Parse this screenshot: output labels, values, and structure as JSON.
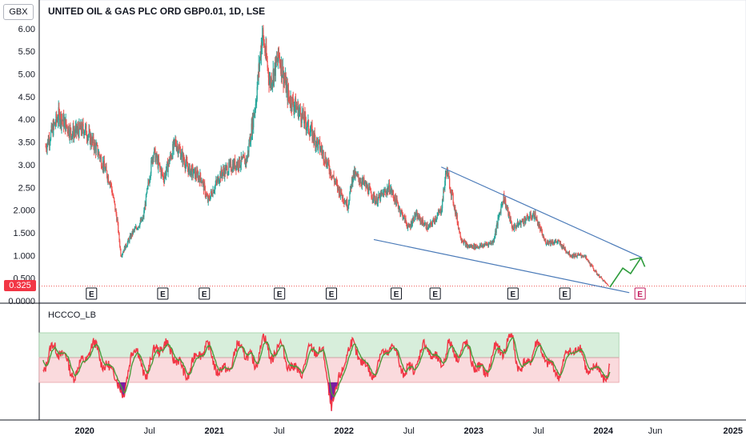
{
  "header": {
    "title": "UNITED OIL & GAS PLC ORD GBP0.01, 1D, LSE",
    "currency": "GBX"
  },
  "price_tag": "0.325",
  "indicator": {
    "label": "HCCCO_LB"
  },
  "colors": {
    "up": "#26a69a",
    "down": "#ef5350",
    "trend": "#4a7ab8",
    "arrow": "#2e9c3c",
    "band_green": "#d7eedb",
    "band_red": "#fadadd",
    "osc_red": "#f23645",
    "osc_green": "#4c9a3d",
    "osc_purple": "#7b1fa2",
    "earnings_future": "#c2185b"
  },
  "chart_data": {
    "type": "candlestick",
    "title": "UNITED OIL & GAS PLC ORD GBP0.01, 1D, LSE",
    "ylabel": "GBX",
    "ylim": [
      0,
      6.4
    ],
    "yticks": [
      "6.00",
      "5.50",
      "5.00",
      "4.50",
      "4.00",
      "3.50",
      "3.00",
      "2.50",
      "2.000",
      "1.500",
      "1.000",
      "0.500",
      "0.0000"
    ],
    "ytick_values": [
      6.0,
      5.5,
      5.0,
      4.5,
      4.0,
      3.5,
      3.0,
      2.5,
      2.0,
      1.5,
      1.0,
      0.5,
      0.0
    ],
    "xticks": [
      "2020",
      "Jul",
      "2021",
      "Jul",
      "2022",
      "Jul",
      "2023",
      "Jul",
      "2024",
      "Jun",
      "2025"
    ],
    "last_price": 0.325,
    "price_path": [
      [
        2019.75,
        3.4
      ],
      [
        2019.85,
        4.1
      ],
      [
        2019.95,
        3.7
      ],
      [
        2020.05,
        3.8
      ],
      [
        2020.15,
        3.3
      ],
      [
        2020.25,
        2.6
      ],
      [
        2020.3,
        1.8
      ],
      [
        2020.33,
        1.0
      ],
      [
        2020.42,
        1.5
      ],
      [
        2020.5,
        1.8
      ],
      [
        2020.58,
        3.3
      ],
      [
        2020.66,
        2.7
      ],
      [
        2020.75,
        3.5
      ],
      [
        2020.85,
        2.9
      ],
      [
        2020.95,
        2.7
      ],
      [
        2021.0,
        2.2
      ],
      [
        2021.1,
        2.8
      ],
      [
        2021.2,
        3.0
      ],
      [
        2021.3,
        3.1
      ],
      [
        2021.37,
        4.4
      ],
      [
        2021.42,
        5.9
      ],
      [
        2021.48,
        4.8
      ],
      [
        2021.55,
        5.4
      ],
      [
        2021.62,
        4.5
      ],
      [
        2021.7,
        4.2
      ],
      [
        2021.8,
        3.7
      ],
      [
        2021.88,
        3.3
      ],
      [
        2022.0,
        2.5
      ],
      [
        2022.08,
        2.1
      ],
      [
        2022.12,
        2.8
      ],
      [
        2022.2,
        2.6
      ],
      [
        2022.3,
        2.2
      ],
      [
        2022.4,
        2.5
      ],
      [
        2022.5,
        1.9
      ],
      [
        2022.55,
        1.6
      ],
      [
        2022.6,
        1.9
      ],
      [
        2022.7,
        1.6
      ],
      [
        2022.8,
        2.0
      ],
      [
        2022.84,
        2.9
      ],
      [
        2022.9,
        2.1
      ],
      [
        2022.95,
        1.4
      ],
      [
        2023.0,
        1.2
      ],
      [
        2023.1,
        1.2
      ],
      [
        2023.2,
        1.3
      ],
      [
        2023.28,
        2.3
      ],
      [
        2023.35,
        1.6
      ],
      [
        2023.45,
        1.8
      ],
      [
        2023.52,
        1.9
      ],
      [
        2023.6,
        1.3
      ],
      [
        2023.7,
        1.3
      ],
      [
        2023.8,
        1.0
      ],
      [
        2023.9,
        1.0
      ],
      [
        2024.0,
        0.6
      ],
      [
        2024.05,
        0.45
      ],
      [
        2024.09,
        0.325
      ]
    ],
    "trendlines": [
      {
        "name": "upper",
        "from": [
          2022.8,
          2.95
        ],
        "to": [
          2024.35,
          0.95
        ]
      },
      {
        "name": "lower",
        "from": [
          2022.28,
          1.35
        ],
        "to": [
          2024.25,
          0.18
        ]
      }
    ],
    "projection_arrow": [
      [
        2024.1,
        0.3
      ],
      [
        2024.2,
        0.72
      ],
      [
        2024.26,
        0.6
      ],
      [
        2024.34,
        0.95
      ],
      [
        2024.37,
        0.75
      ]
    ],
    "earnings_markers": [
      2020.1,
      2020.65,
      2020.97,
      2021.55,
      2021.95,
      2022.45,
      2022.75,
      2023.35,
      2023.75
    ],
    "earnings_future": [
      2024.33
    ],
    "indicator": {
      "name": "HCCCO_LB",
      "bands": {
        "upper": 100,
        "mid": 50,
        "lower": 0
      },
      "ylim": [
        -80,
        160
      ]
    }
  }
}
